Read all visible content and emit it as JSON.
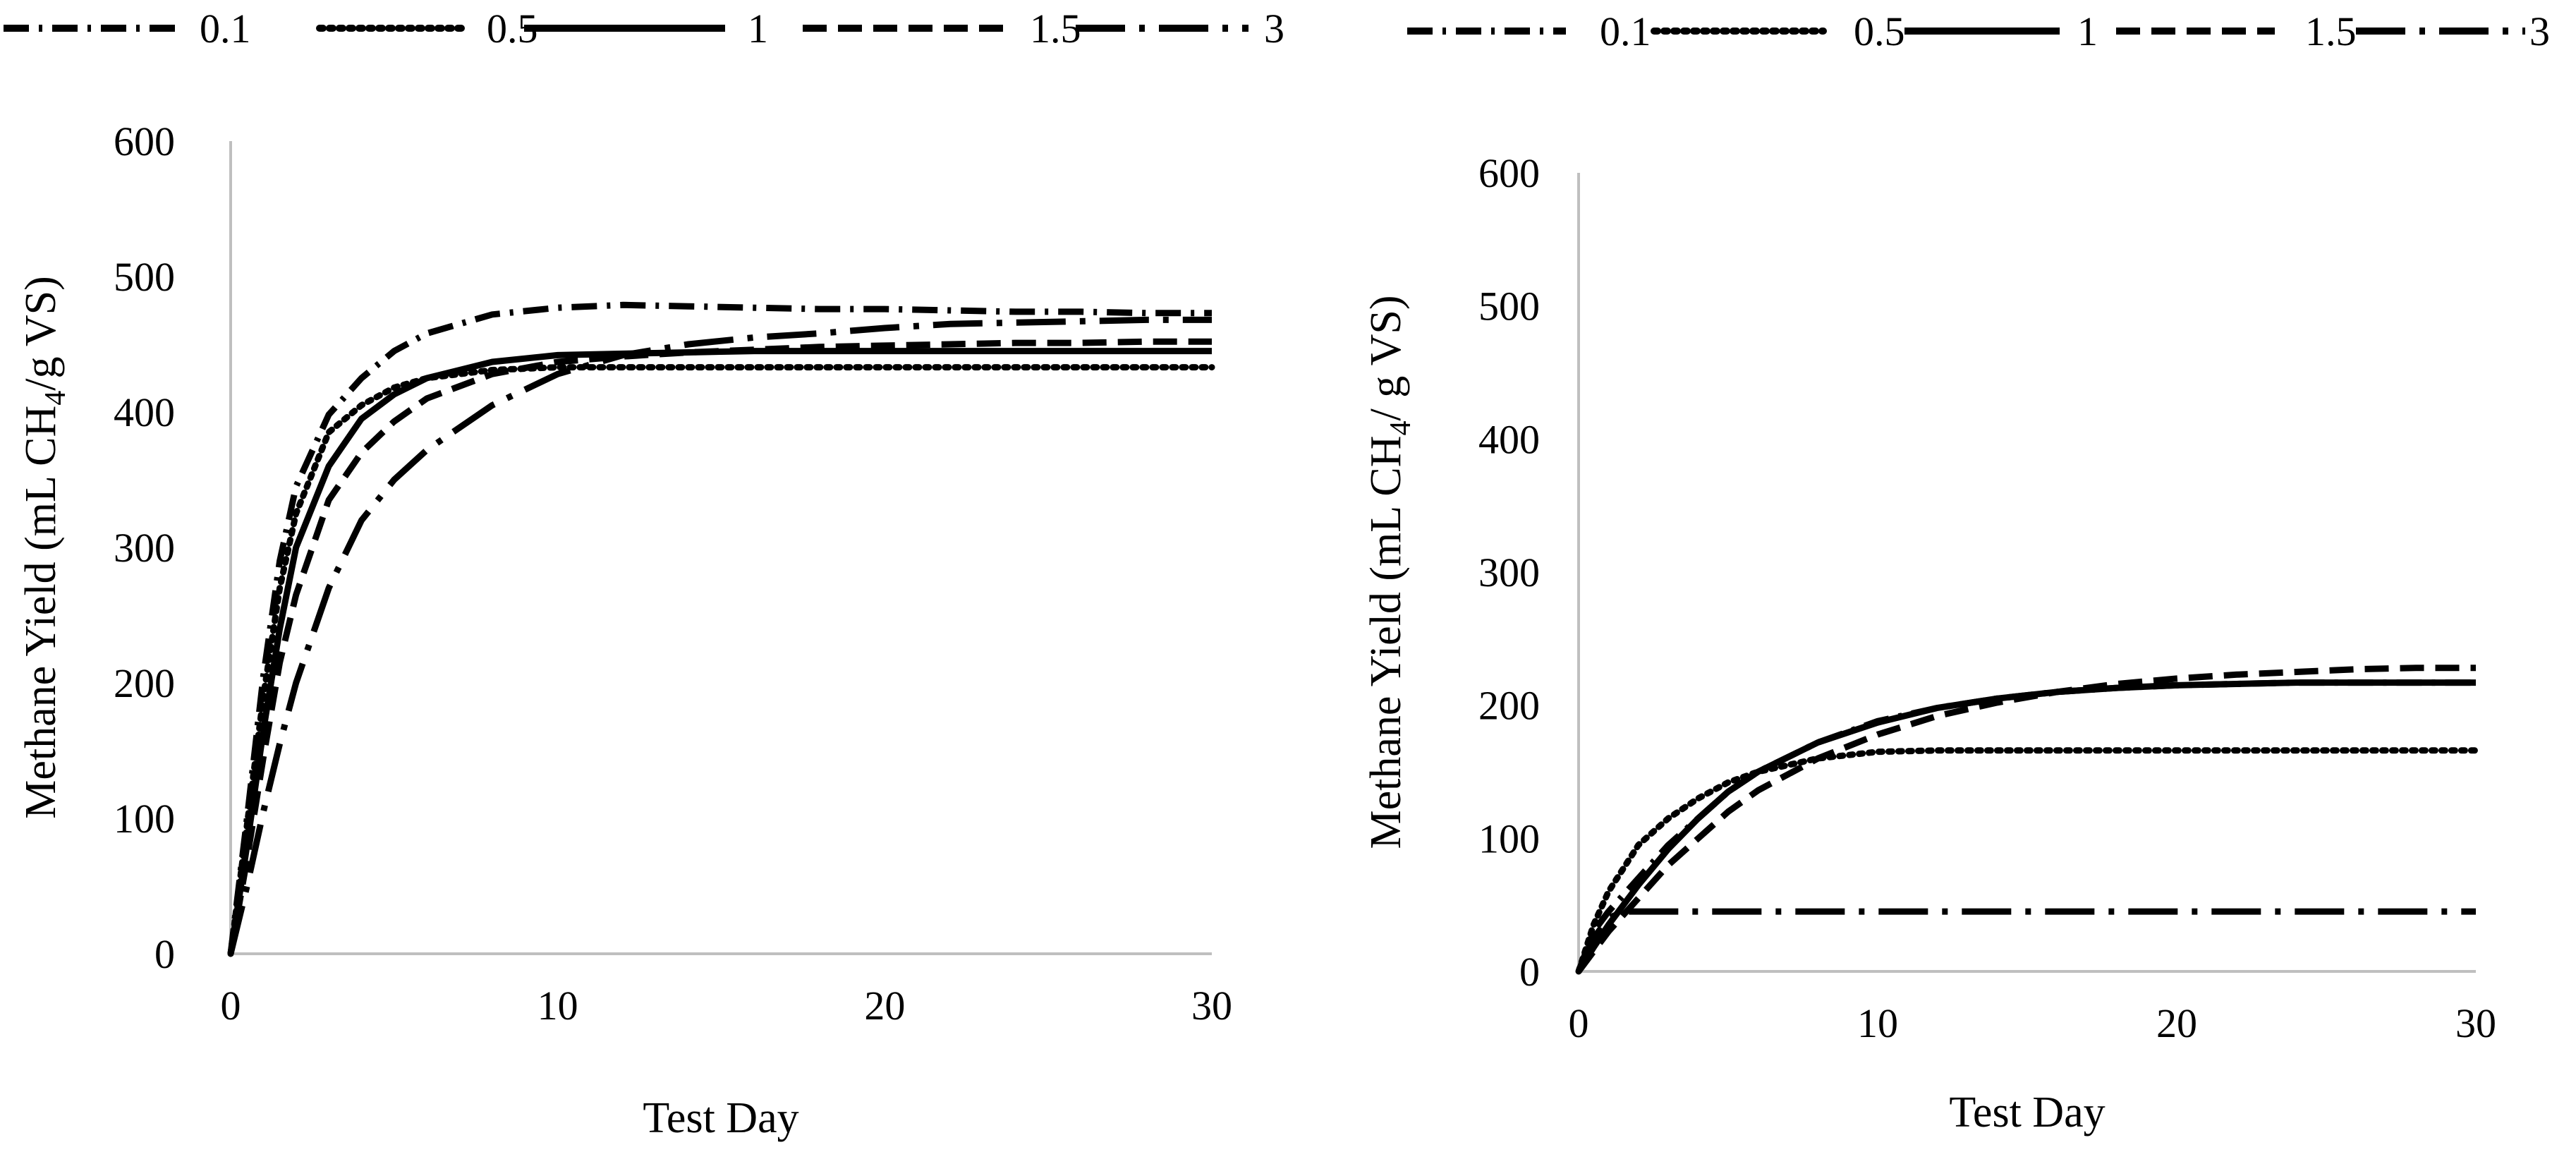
{
  "chart_data": [
    {
      "type": "line",
      "title": "",
      "xlabel": "Test Day",
      "ylabel_prefix": "Methane Yield (mL CH",
      "ylabel_sub": "4",
      "ylabel_suffix": "/g VS)",
      "xlim": [
        0,
        30
      ],
      "ylim": [
        0,
        600
      ],
      "x_ticks": [
        "0",
        "10",
        "20",
        "30"
      ],
      "y_ticks": [
        "0",
        "100",
        "200",
        "300",
        "400",
        "500",
        "600"
      ],
      "grid": false,
      "legend_position": "top",
      "series": [
        {
          "name": "0.1",
          "style": "dash-dot",
          "x": [
            0,
            0.5,
            1,
            1.5,
            2,
            3,
            4,
            5,
            6,
            8,
            10,
            12,
            14,
            16,
            18,
            20,
            22,
            24,
            26,
            28,
            30
          ],
          "y": [
            0,
            100,
            205,
            290,
            345,
            398,
            425,
            445,
            458,
            472,
            477,
            479,
            478,
            477,
            476,
            476,
            475,
            474,
            474,
            473,
            473
          ]
        },
        {
          "name": "0.5",
          "style": "dotted",
          "x": [
            0,
            0.5,
            1,
            1.5,
            2,
            3,
            4,
            5,
            6,
            8,
            10,
            12,
            14,
            16,
            18,
            20,
            22,
            24,
            26,
            28,
            30
          ],
          "y": [
            0,
            95,
            190,
            270,
            325,
            385,
            405,
            418,
            425,
            431,
            433,
            433,
            433,
            433,
            433,
            433,
            433,
            433,
            433,
            433,
            433
          ]
        },
        {
          "name": "1",
          "style": "solid",
          "x": [
            0,
            0.5,
            1,
            1.5,
            2,
            3,
            4,
            5,
            6,
            8,
            10,
            12,
            14,
            16,
            18,
            20,
            22,
            24,
            26,
            28,
            30
          ],
          "y": [
            0,
            80,
            165,
            240,
            300,
            360,
            395,
            413,
            425,
            437,
            442,
            443,
            444,
            445,
            445,
            445,
            445,
            445,
            445,
            445,
            445
          ]
        },
        {
          "name": "1.5",
          "style": "dashed",
          "x": [
            0,
            0.5,
            1,
            1.5,
            2,
            3,
            4,
            5,
            6,
            8,
            10,
            12,
            14,
            16,
            18,
            20,
            22,
            24,
            26,
            28,
            30
          ],
          "y": [
            0,
            70,
            145,
            215,
            265,
            335,
            370,
            393,
            410,
            428,
            437,
            441,
            444,
            446,
            448,
            449,
            450,
            451,
            451,
            452,
            452
          ]
        },
        {
          "name": "3",
          "style": "long-dash-dot",
          "x": [
            0,
            0.5,
            1,
            1.5,
            2,
            3,
            4,
            5,
            6,
            8,
            10,
            12,
            14,
            16,
            18,
            20,
            22,
            24,
            26,
            28,
            30
          ],
          "y": [
            0,
            50,
            105,
            155,
            200,
            270,
            320,
            350,
            372,
            405,
            428,
            442,
            450,
            455,
            458,
            462,
            465,
            466,
            467,
            468,
            468
          ]
        }
      ]
    },
    {
      "type": "line",
      "title": "",
      "xlabel": "Test Day",
      "ylabel_prefix": "Methane Yield (mL CH",
      "ylabel_sub": "4",
      "ylabel_suffix": "/ g VS)",
      "xlim": [
        0,
        30
      ],
      "ylim": [
        0,
        600
      ],
      "x_ticks": [
        "0",
        "10",
        "20",
        "30"
      ],
      "y_ticks": [
        "0",
        "100",
        "200",
        "300",
        "400",
        "500",
        "600"
      ],
      "grid": false,
      "legend_position": "top",
      "series": [
        {
          "name": "0.1",
          "style": "dash-dot",
          "x": [
            0,
            0.5,
            1,
            2,
            3,
            4,
            5,
            6,
            8,
            10,
            12,
            14,
            16,
            18,
            20,
            22,
            24,
            26,
            28,
            30
          ],
          "y": [
            0,
            30,
            45,
            70,
            95,
            115,
            135,
            150,
            172,
            188,
            198,
            205,
            210,
            213,
            215,
            216,
            217,
            217,
            217,
            217
          ]
        },
        {
          "name": "0.5",
          "style": "dotted",
          "x": [
            0,
            0.5,
            1,
            2,
            3,
            4,
            5,
            6,
            8,
            10,
            12,
            14,
            16,
            18,
            20,
            22,
            24,
            26,
            28,
            30
          ],
          "y": [
            0,
            35,
            60,
            95,
            115,
            130,
            142,
            150,
            160,
            165,
            166,
            166,
            166,
            166,
            166,
            166,
            166,
            166,
            166,
            166
          ]
        },
        {
          "name": "1",
          "style": "solid",
          "x": [
            0,
            0.5,
            1,
            2,
            3,
            4,
            5,
            6,
            8,
            10,
            12,
            14,
            16,
            18,
            20,
            22,
            24,
            26,
            28,
            30
          ],
          "y": [
            0,
            18,
            35,
            65,
            92,
            115,
            135,
            150,
            172,
            187,
            198,
            205,
            210,
            213,
            215,
            216,
            217,
            217,
            217,
            217
          ]
        },
        {
          "name": "1.5",
          "style": "dashed",
          "x": [
            0,
            0.5,
            1,
            2,
            3,
            4,
            5,
            6,
            8,
            10,
            12,
            14,
            16,
            18,
            20,
            22,
            24,
            26,
            28,
            30
          ],
          "y": [
            0,
            15,
            30,
            55,
            80,
            100,
            120,
            136,
            160,
            178,
            192,
            202,
            210,
            216,
            220,
            223,
            225,
            227,
            228,
            228
          ]
        },
        {
          "name": "3",
          "style": "long-dash-dot",
          "x": [
            0,
            0.5,
            1,
            1.5,
            2,
            3,
            5,
            10,
            15,
            20,
            25,
            30
          ],
          "y": [
            0,
            25,
            40,
            45,
            45,
            45,
            45,
            45,
            45,
            45,
            45,
            45
          ]
        }
      ]
    }
  ]
}
